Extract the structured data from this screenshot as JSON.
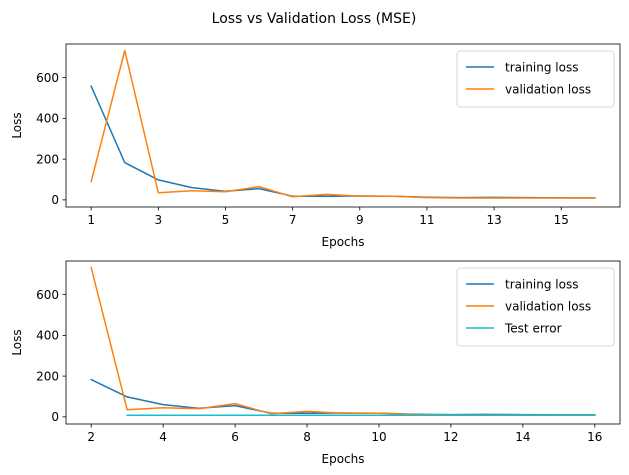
{
  "title": "Loss vs Validation Loss (MSE)",
  "chart_data": [
    {
      "type": "line",
      "xlabel": "Epochs",
      "ylabel": "Loss",
      "xlim": [
        0.25,
        16.75
      ],
      "ylim": [
        -35,
        765
      ],
      "xticks": [
        1,
        3,
        5,
        7,
        9,
        11,
        13,
        15
      ],
      "yticks": [
        0,
        200,
        400,
        600
      ],
      "grid": false,
      "legend": "top-right",
      "series": [
        {
          "name": "training loss",
          "color": "#1f77b4",
          "x": [
            1,
            2,
            3,
            4,
            5,
            6,
            7,
            8,
            9,
            10,
            11,
            12,
            13,
            14,
            15,
            16
          ],
          "y": [
            558,
            183,
            98,
            60,
            42,
            55,
            18,
            18,
            19,
            18,
            13,
            11,
            12,
            11,
            10,
            10
          ]
        },
        {
          "name": "validation loss",
          "color": "#ff7f0e",
          "x": [
            1,
            2,
            3,
            4,
            5,
            6,
            7,
            8,
            9,
            10,
            11,
            12,
            13,
            14,
            15,
            16
          ],
          "y": [
            90,
            733,
            35,
            45,
            40,
            65,
            15,
            27,
            18,
            18,
            11,
            9,
            9,
            9,
            9,
            9
          ]
        }
      ]
    },
    {
      "type": "line",
      "xlabel": "Epochs",
      "ylabel": "Loss",
      "xlim": [
        1.3,
        16.7
      ],
      "ylim": [
        -35,
        765
      ],
      "xticks": [
        2,
        4,
        6,
        8,
        10,
        12,
        14,
        16
      ],
      "yticks": [
        0,
        200,
        400,
        600
      ],
      "grid": false,
      "legend": "top-right",
      "series": [
        {
          "name": "training loss",
          "color": "#1f77b4",
          "x": [
            2,
            3,
            4,
            5,
            6,
            7,
            8,
            9,
            10,
            11,
            12,
            13,
            14,
            15,
            16
          ],
          "y": [
            183,
            98,
            60,
            42,
            55,
            18,
            18,
            19,
            18,
            13,
            11,
            12,
            11,
            10,
            10
          ]
        },
        {
          "name": "validation loss",
          "color": "#ff7f0e",
          "x": [
            2,
            3,
            4,
            5,
            6,
            7,
            8,
            9,
            10,
            11,
            12,
            13,
            14,
            15,
            16
          ],
          "y": [
            733,
            35,
            45,
            40,
            65,
            15,
            27,
            18,
            18,
            11,
            9,
            9,
            9,
            9,
            9
          ]
        },
        {
          "name": "Test error",
          "color": "#17becf",
          "x": [
            3,
            4,
            5,
            6,
            7,
            8,
            9,
            10,
            11,
            12,
            13,
            14,
            15,
            16
          ],
          "y": [
            8,
            8,
            8,
            8,
            8,
            8,
            8,
            8,
            8,
            8,
            8,
            8,
            8,
            8
          ]
        }
      ]
    }
  ]
}
